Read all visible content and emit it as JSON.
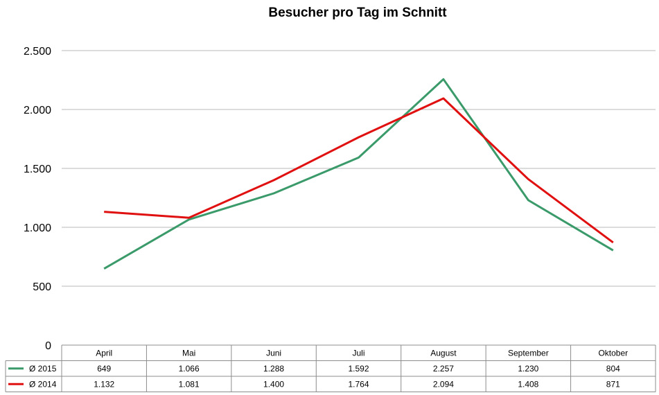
{
  "chart_data": {
    "type": "line",
    "title": "Besucher pro Tag im Schnitt",
    "categories": [
      "April",
      "Mai",
      "Juni",
      "Juli",
      "August",
      "September",
      "Oktober"
    ],
    "series": [
      {
        "name": "Ø 2015",
        "color": "#3a9a6a",
        "values": [
          649,
          1066,
          1288,
          1592,
          2257,
          1230,
          804
        ],
        "labels": [
          "649",
          "1.066",
          "1.288",
          "1.592",
          "2.257",
          "1.230",
          "804"
        ]
      },
      {
        "name": "Ø 2014",
        "color": "#e01010",
        "values": [
          1132,
          1081,
          1400,
          1764,
          2094,
          1408,
          871
        ],
        "labels": [
          "1.132",
          "1.081",
          "1.400",
          "1.764",
          "2.094",
          "1.408",
          "871"
        ]
      }
    ],
    "ylim": [
      0,
      2500
    ],
    "yticks": [
      0,
      500,
      1000,
      1500,
      2000,
      2500
    ],
    "ytick_labels": [
      "0",
      "500",
      "1.000",
      "1.500",
      "2.000",
      "2.500"
    ],
    "grid": true,
    "legend": "data-table"
  }
}
